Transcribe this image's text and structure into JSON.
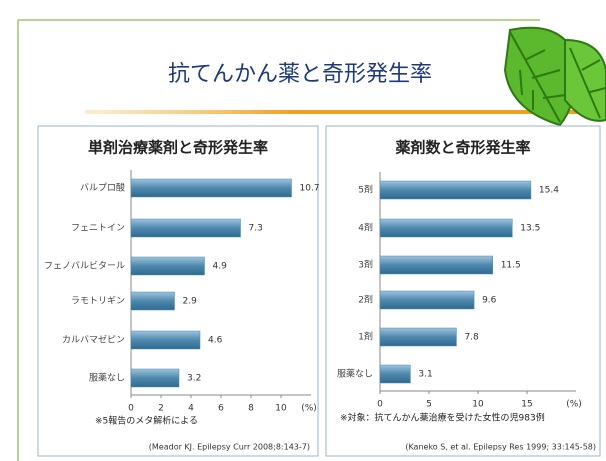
{
  "title": "抗てんかん薬と奇形発生率",
  "chart_data": [
    {
      "type": "hbar",
      "title": "単剤治療薬剤と奇形発生率",
      "categories": [
        "バルプロ酸",
        "フェニトイン",
        "フェノバルビタール",
        "ラモトリギン",
        "カルバマゼピン",
        "服薬なし"
      ],
      "values": [
        10.7,
        7.3,
        4.9,
        2.9,
        4.6,
        3.2
      ],
      "color": "#4f88ad",
      "xlim": [
        0,
        12
      ],
      "xticks": [
        0,
        2,
        4,
        6,
        8,
        10
      ],
      "x_unit": "(%)",
      "note": "※5報告のメタ解析による",
      "source": "(Meador KJ. Epilepsy Curr 2008;8:143-7)"
    },
    {
      "type": "hbar",
      "title": "薬剤数と奇形発生率",
      "categories": [
        "5剤",
        "4剤",
        "3剤",
        "2剤",
        "1剤",
        "服薬なし"
      ],
      "values": [
        15.4,
        13.5,
        11.5,
        9.6,
        7.8,
        3.1
      ],
      "color": "#4f88ad",
      "xlim": [
        0,
        20
      ],
      "xticks": [
        0,
        5,
        10,
        15
      ],
      "x_unit": "(%)",
      "note": "※対象：抗てんかん薬治療を受けた女性の児983例",
      "source": "(Kaneko S, et al. Epilepsy Res 1999; 33:145-58)"
    }
  ]
}
